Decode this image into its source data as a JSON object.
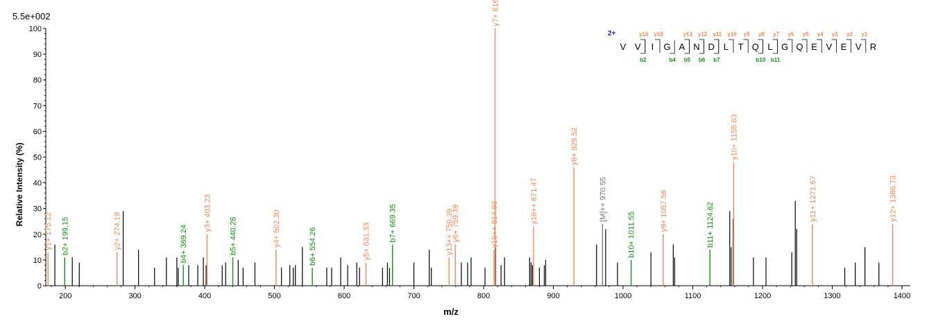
{
  "chart_data": {
    "type": "bar",
    "scale_label": "5.5e+002",
    "xlabel": "m/z",
    "ylabel": "Relative   Intensity (%)",
    "xlim": [
      172,
      1412
    ],
    "ylim": [
      0,
      100
    ],
    "x_ticks": [
      200,
      300,
      400,
      500,
      600,
      700,
      800,
      900,
      1000,
      1100,
      1200,
      1300,
      1400
    ],
    "y_ticks": [
      0,
      10,
      20,
      30,
      40,
      50,
      60,
      70,
      80,
      90,
      100
    ],
    "colors": {
      "y_ion": "#e8895a",
      "b_ion": "#1a8a1a",
      "precursor": "#777777",
      "unlabeled": "#000000",
      "charge": "#1a1aa0"
    },
    "peaks_unlabeled": [
      {
        "mz": 185,
        "intensity": 16
      },
      {
        "mz": 210,
        "intensity": 11
      },
      {
        "mz": 220,
        "intensity": 9
      },
      {
        "mz": 283,
        "intensity": 29
      },
      {
        "mz": 305,
        "intensity": 14
      },
      {
        "mz": 328,
        "intensity": 7
      },
      {
        "mz": 345,
        "intensity": 11
      },
      {
        "mz": 360,
        "intensity": 11
      },
      {
        "mz": 362,
        "intensity": 7
      },
      {
        "mz": 377,
        "intensity": 8
      },
      {
        "mz": 390,
        "intensity": 8
      },
      {
        "mz": 398,
        "intensity": 11
      },
      {
        "mz": 402,
        "intensity": 8
      },
      {
        "mz": 425,
        "intensity": 8
      },
      {
        "mz": 430,
        "intensity": 9
      },
      {
        "mz": 448,
        "intensity": 10
      },
      {
        "mz": 455,
        "intensity": 7
      },
      {
        "mz": 472,
        "intensity": 9
      },
      {
        "mz": 510,
        "intensity": 7
      },
      {
        "mz": 522,
        "intensity": 8
      },
      {
        "mz": 527,
        "intensity": 7
      },
      {
        "mz": 530,
        "intensity": 8
      },
      {
        "mz": 540,
        "intensity": 15
      },
      {
        "mz": 575,
        "intensity": 7
      },
      {
        "mz": 582,
        "intensity": 7
      },
      {
        "mz": 595,
        "intensity": 11
      },
      {
        "mz": 605,
        "intensity": 8
      },
      {
        "mz": 618,
        "intensity": 9
      },
      {
        "mz": 622,
        "intensity": 7
      },
      {
        "mz": 655,
        "intensity": 7
      },
      {
        "mz": 662,
        "intensity": 9
      },
      {
        "mz": 665,
        "intensity": 7
      },
      {
        "mz": 700,
        "intensity": 9
      },
      {
        "mz": 722,
        "intensity": 14
      },
      {
        "mz": 725,
        "intensity": 7
      },
      {
        "mz": 768,
        "intensity": 9
      },
      {
        "mz": 777,
        "intensity": 9
      },
      {
        "mz": 782,
        "intensity": 11
      },
      {
        "mz": 802,
        "intensity": 7
      },
      {
        "mz": 817,
        "intensity": 15
      },
      {
        "mz": 825,
        "intensity": 8
      },
      {
        "mz": 830,
        "intensity": 11
      },
      {
        "mz": 866,
        "intensity": 11
      },
      {
        "mz": 868,
        "intensity": 9
      },
      {
        "mz": 870,
        "intensity": 8
      },
      {
        "mz": 880,
        "intensity": 7
      },
      {
        "mz": 887,
        "intensity": 8
      },
      {
        "mz": 889,
        "intensity": 10
      },
      {
        "mz": 962,
        "intensity": 16
      },
      {
        "mz": 975,
        "intensity": 22
      },
      {
        "mz": 992,
        "intensity": 9
      },
      {
        "mz": 1040,
        "intensity": 13
      },
      {
        "mz": 1072,
        "intensity": 16
      },
      {
        "mz": 1074,
        "intensity": 11
      },
      {
        "mz": 1153,
        "intensity": 29
      },
      {
        "mz": 1155,
        "intensity": 15
      },
      {
        "mz": 1158,
        "intensity": 26
      },
      {
        "mz": 1187,
        "intensity": 11
      },
      {
        "mz": 1205,
        "intensity": 11
      },
      {
        "mz": 1242,
        "intensity": 13
      },
      {
        "mz": 1247,
        "intensity": 33
      },
      {
        "mz": 1249,
        "intensity": 22
      },
      {
        "mz": 1318,
        "intensity": 7
      },
      {
        "mz": 1333,
        "intensity": 9
      },
      {
        "mz": 1347,
        "intensity": 15
      },
      {
        "mz": 1367,
        "intensity": 9
      }
    ],
    "peaks_labeled": [
      {
        "mz": 175.12,
        "intensity": 13,
        "label": "y1+ 175.12",
        "ion": "y"
      },
      {
        "mz": 199.15,
        "intensity": 11,
        "label": "b2+ 199.15",
        "ion": "b"
      },
      {
        "mz": 274.19,
        "intensity": 13,
        "label": "y2+ 274.19",
        "ion": "y"
      },
      {
        "mz": 369.24,
        "intensity": 8,
        "label": "b4+ 369.24",
        "ion": "b"
      },
      {
        "mz": 403.23,
        "intensity": 20,
        "label": "y3+ 403.23",
        "ion": "y"
      },
      {
        "mz": 440.28,
        "intensity": 11,
        "label": "b5+ 440.28",
        "ion": "b"
      },
      {
        "mz": 502.3,
        "intensity": 14,
        "label": "y4+ 502.30",
        "ion": "y"
      },
      {
        "mz": 554.26,
        "intensity": 7,
        "label": "b6+ 554.26",
        "ion": "b"
      },
      {
        "mz": 631.33,
        "intensity": 9,
        "label": "y5+ 631.33",
        "ion": "y"
      },
      {
        "mz": 669.35,
        "intensity": 16,
        "label": "b7+ 669.35",
        "ion": "b"
      },
      {
        "mz": 750.39,
        "intensity": 11,
        "label": "y13++ 750.39",
        "ion": "y"
      },
      {
        "mz": 759.39,
        "intensity": 16,
        "label": "y6+ 759.39",
        "ion": "y"
      },
      {
        "mz": 814.93,
        "intensity": 14,
        "label": "y15++ 814.93",
        "ion": "y"
      },
      {
        "mz": 816.41,
        "intensity": 100,
        "label": "y7+ 816.41",
        "ion": "y"
      },
      {
        "mz": 871.47,
        "intensity": 23,
        "label": "y16++ 871.47",
        "ion": "y"
      },
      {
        "mz": 929.52,
        "intensity": 46,
        "label": "y8+ 929.52",
        "ion": "y"
      },
      {
        "mz": 970.55,
        "intensity": 24,
        "label": "[M]++ 970.55",
        "ion": "precursor"
      },
      {
        "mz": 1011.55,
        "intensity": 10,
        "label": "b10+ 1011.55",
        "ion": "b"
      },
      {
        "mz": 1057.56,
        "intensity": 20,
        "label": "y9+ 1057.56",
        "ion": "y"
      },
      {
        "mz": 1124.62,
        "intensity": 14,
        "label": "b11+ 1124.62",
        "ion": "b"
      },
      {
        "mz": 1158.63,
        "intensity": 48,
        "label": "y10+ 1158.63",
        "ion": "y"
      },
      {
        "mz": 1271.67,
        "intensity": 24,
        "label": "y11+ 1271.67",
        "ion": "y"
      },
      {
        "mz": 1386.73,
        "intensity": 24,
        "label": "y12+ 1386.73",
        "ion": "y"
      }
    ],
    "sequence": {
      "charge": "2+",
      "residues": [
        "V",
        "V",
        "I",
        "G",
        "A",
        "N",
        "D",
        "L",
        "T",
        "Q",
        "L",
        "G",
        "Q",
        "E",
        "V",
        "E",
        "V",
        "R"
      ],
      "y_labels": [
        {
          "label": "y16",
          "after": 2
        },
        {
          "label": "y15",
          "after": 3
        },
        {
          "label": "y13",
          "after": 5
        },
        {
          "label": "y12",
          "after": 6
        },
        {
          "label": "y11",
          "after": 7
        },
        {
          "label": "y10",
          "after": 8
        },
        {
          "label": "y9",
          "after": 9
        },
        {
          "label": "y8",
          "after": 10
        },
        {
          "label": "y7",
          "after": 11
        },
        {
          "label": "y6",
          "after": 12
        },
        {
          "label": "y5",
          "after": 13
        },
        {
          "label": "y4",
          "after": 14
        },
        {
          "label": "y3",
          "after": 15
        },
        {
          "label": "y2",
          "after": 16
        },
        {
          "label": "y1",
          "after": 17
        }
      ],
      "b_labels": [
        {
          "label": "b2",
          "after": 2
        },
        {
          "label": "b4",
          "after": 4
        },
        {
          "label": "b5",
          "after": 5
        },
        {
          "label": "b6",
          "after": 6
        },
        {
          "label": "b7",
          "after": 7
        },
        {
          "label": "b10",
          "after": 10
        },
        {
          "label": "b11",
          "after": 11
        }
      ]
    }
  }
}
